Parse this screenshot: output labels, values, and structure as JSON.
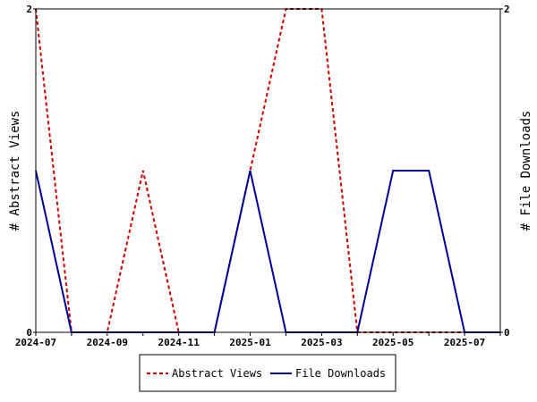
{
  "chart_data": {
    "type": "line",
    "x": [
      "2024-07",
      "2024-08",
      "2024-09",
      "2024-10",
      "2024-11",
      "2024-12",
      "2025-01",
      "2025-02",
      "2025-03",
      "2025-04",
      "2025-05",
      "2025-06",
      "2025-07",
      "2025-08"
    ],
    "x_tick_labels": [
      "2024-07",
      "2024-09",
      "2024-11",
      "2025-01",
      "2025-03",
      "2025-05",
      "2025-07"
    ],
    "series": [
      {
        "name": "Abstract Views",
        "color": "#cc0000",
        "dash": "dashed",
        "axis": "left",
        "values": [
          2,
          0,
          0,
          1,
          0,
          0,
          1,
          2,
          2,
          0,
          0,
          0,
          0,
          0
        ]
      },
      {
        "name": "File Downloads",
        "color": "#000099",
        "dash": "solid",
        "axis": "right",
        "values": [
          1,
          0,
          0,
          0,
          0,
          0,
          1,
          0,
          0,
          0,
          1,
          1,
          0,
          0
        ]
      }
    ],
    "ylabel_left": "# Abstract Views",
    "ylabel_right": "# File Downloads",
    "ylim": [
      0,
      2
    ],
    "y_tick_labels": [
      "0",
      "2"
    ],
    "grid": false,
    "legend_position": "bottom"
  }
}
